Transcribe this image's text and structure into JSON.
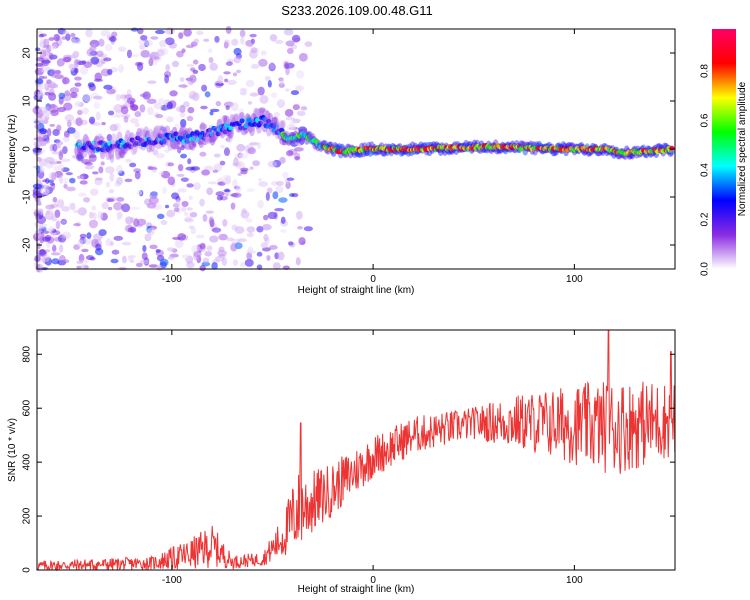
{
  "chart_data": [
    {
      "type": "heatmap",
      "title": "S233.2026.109.00.48.G11",
      "xlabel": "Height of straight line (km)",
      "ylabel": "Frequency (Hz)",
      "xlim": [
        -167,
        150
      ],
      "ylim": [
        -25,
        25
      ],
      "xticks": [
        -100,
        0,
        100
      ],
      "yticks": [
        -20,
        -10,
        0,
        10,
        20
      ],
      "colorbar": {
        "label": "Normalized spectral amplitude",
        "range": [
          0,
          0.97
        ],
        "ticks": [
          "0.0",
          "0.2",
          "0.4",
          "0.6",
          "0.8"
        ],
        "colors": [
          "#ffffff",
          "#8a2be2",
          "#0000ff",
          "#00ffff",
          "#00ff00",
          "#ffff00",
          "#ff0000",
          "#ff0066"
        ]
      },
      "ridge": [
        {
          "x": -130,
          "y": 0.5
        },
        {
          "x": -110,
          "y": 2
        },
        {
          "x": -90,
          "y": 2.5
        },
        {
          "x": -70,
          "y": 4.5
        },
        {
          "x": -55,
          "y": 6
        },
        {
          "x": -42,
          "y": 2
        },
        {
          "x": -35,
          "y": 3
        },
        {
          "x": -25,
          "y": 0.5
        },
        {
          "x": -15,
          "y": -0.5
        },
        {
          "x": 0,
          "y": 0
        },
        {
          "x": 25,
          "y": 0
        },
        {
          "x": 60,
          "y": 0.5
        },
        {
          "x": 90,
          "y": 0
        },
        {
          "x": 115,
          "y": 0
        },
        {
          "x": 125,
          "y": -0.8
        },
        {
          "x": 150,
          "y": 0
        }
      ]
    },
    {
      "type": "line",
      "xlabel": "Height of straight line (km)",
      "ylabel": "SNR (10 * v/v)",
      "xlim": [
        -167,
        150
      ],
      "ylim": [
        0,
        890
      ],
      "xticks": [
        -100,
        0,
        100
      ],
      "yticks": [
        0,
        200,
        400,
        600,
        800
      ],
      "color": "#ee3333",
      "envelope": [
        {
          "x": -167,
          "mean": 15,
          "spread": 20
        },
        {
          "x": -110,
          "mean": 25,
          "spread": 25
        },
        {
          "x": -90,
          "mean": 60,
          "spread": 60
        },
        {
          "x": -80,
          "mean": 90,
          "spread": 80
        },
        {
          "x": -70,
          "mean": 30,
          "spread": 25
        },
        {
          "x": -55,
          "mean": 40,
          "spread": 25
        },
        {
          "x": -45,
          "mean": 120,
          "spread": 80
        },
        {
          "x": -38,
          "mean": 220,
          "spread": 150
        },
        {
          "x": -30,
          "mean": 250,
          "spread": 120
        },
        {
          "x": -20,
          "mean": 300,
          "spread": 100
        },
        {
          "x": -10,
          "mean": 360,
          "spread": 90
        },
        {
          "x": 0,
          "mean": 420,
          "spread": 80
        },
        {
          "x": 20,
          "mean": 500,
          "spread": 70
        },
        {
          "x": 50,
          "mean": 545,
          "spread": 60
        },
        {
          "x": 70,
          "mean": 550,
          "spread": 100
        },
        {
          "x": 100,
          "mean": 540,
          "spread": 150
        },
        {
          "x": 120,
          "mean": 530,
          "spread": 180
        },
        {
          "x": 150,
          "mean": 560,
          "spread": 140
        }
      ],
      "peaks": [
        {
          "x": -36,
          "y": 545
        },
        {
          "x": 117,
          "y": 890
        },
        {
          "x": 148,
          "y": 810
        }
      ]
    }
  ]
}
